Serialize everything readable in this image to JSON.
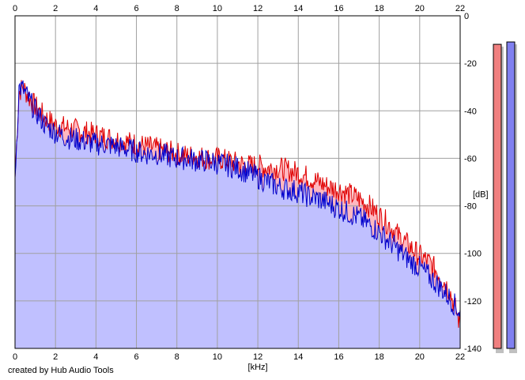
{
  "chart_data": {
    "type": "area",
    "title": "",
    "xlabel": "[kHz]",
    "ylabel": "[dB]",
    "xlim": [
      0,
      22
    ],
    "ylim": [
      -140,
      0
    ],
    "x_ticks": [
      "0",
      "2",
      "4",
      "6",
      "8",
      "10",
      "12",
      "14",
      "16",
      "18",
      "20",
      "22"
    ],
    "y_ticks": [
      "0",
      "-20",
      "-40",
      "-60",
      "-80",
      "-100",
      "-120",
      "-140"
    ],
    "grid": true,
    "series": [
      {
        "color": "#e00000",
        "fill": "#ffb8c0",
        "x": [
          0,
          0.2,
          0.4,
          0.6,
          0.8,
          1,
          1.5,
          2,
          2.5,
          3,
          3.5,
          4,
          4.5,
          5,
          5.5,
          6,
          6.5,
          7,
          7.5,
          8,
          8.5,
          9,
          9.5,
          10,
          10.5,
          11,
          11.5,
          12,
          12.5,
          13,
          13.5,
          14,
          14.5,
          15,
          15.5,
          16,
          16.5,
          17,
          17.5,
          18,
          18.5,
          19,
          19.5,
          20,
          20.5,
          21,
          21.5,
          22
        ],
        "values": [
          -68,
          -32,
          -30,
          -33,
          -36,
          -38,
          -43,
          -46,
          -47,
          -48,
          -49,
          -50,
          -51,
          -52,
          -53,
          -54,
          -55,
          -56,
          -57,
          -58,
          -59,
          -59,
          -60,
          -60,
          -61,
          -62,
          -63,
          -63,
          -64,
          -64,
          -65,
          -66,
          -68,
          -70,
          -72,
          -73,
          -75,
          -77,
          -80,
          -84,
          -88,
          -93,
          -97,
          -101,
          -104,
          -109,
          -116,
          -130
        ]
      },
      {
        "color": "#0000cc",
        "fill": "#c0c0ff",
        "x": [
          0,
          0.2,
          0.4,
          0.6,
          0.8,
          1,
          1.5,
          2,
          2.5,
          3,
          3.5,
          4,
          4.5,
          5,
          5.5,
          6,
          6.5,
          7,
          7.5,
          8,
          8.5,
          9,
          9.5,
          10,
          10.5,
          11,
          11.5,
          12,
          12.5,
          13,
          13.5,
          14,
          14.5,
          15,
          15.5,
          16,
          16.5,
          17,
          17.5,
          18,
          18.5,
          19,
          19.5,
          20,
          20.5,
          21,
          21.5,
          22
        ],
        "values": [
          -68,
          -30,
          -31,
          -34,
          -37,
          -40,
          -46,
          -49,
          -51,
          -52,
          -53,
          -54,
          -54,
          -55,
          -56,
          -57,
          -58,
          -58,
          -59,
          -60,
          -60,
          -61,
          -61,
          -62,
          -63,
          -64,
          -66,
          -68,
          -70,
          -72,
          -73,
          -74,
          -76,
          -77,
          -79,
          -81,
          -83,
          -85,
          -88,
          -91,
          -95,
          -99,
          -103,
          -106,
          -110,
          -114,
          -119,
          -125
        ]
      }
    ],
    "levels": {
      "left": -12,
      "right": -11,
      "colors": [
        "#f08080",
        "#8080f0"
      ]
    }
  },
  "credit": "created by Hub Audio Tools"
}
